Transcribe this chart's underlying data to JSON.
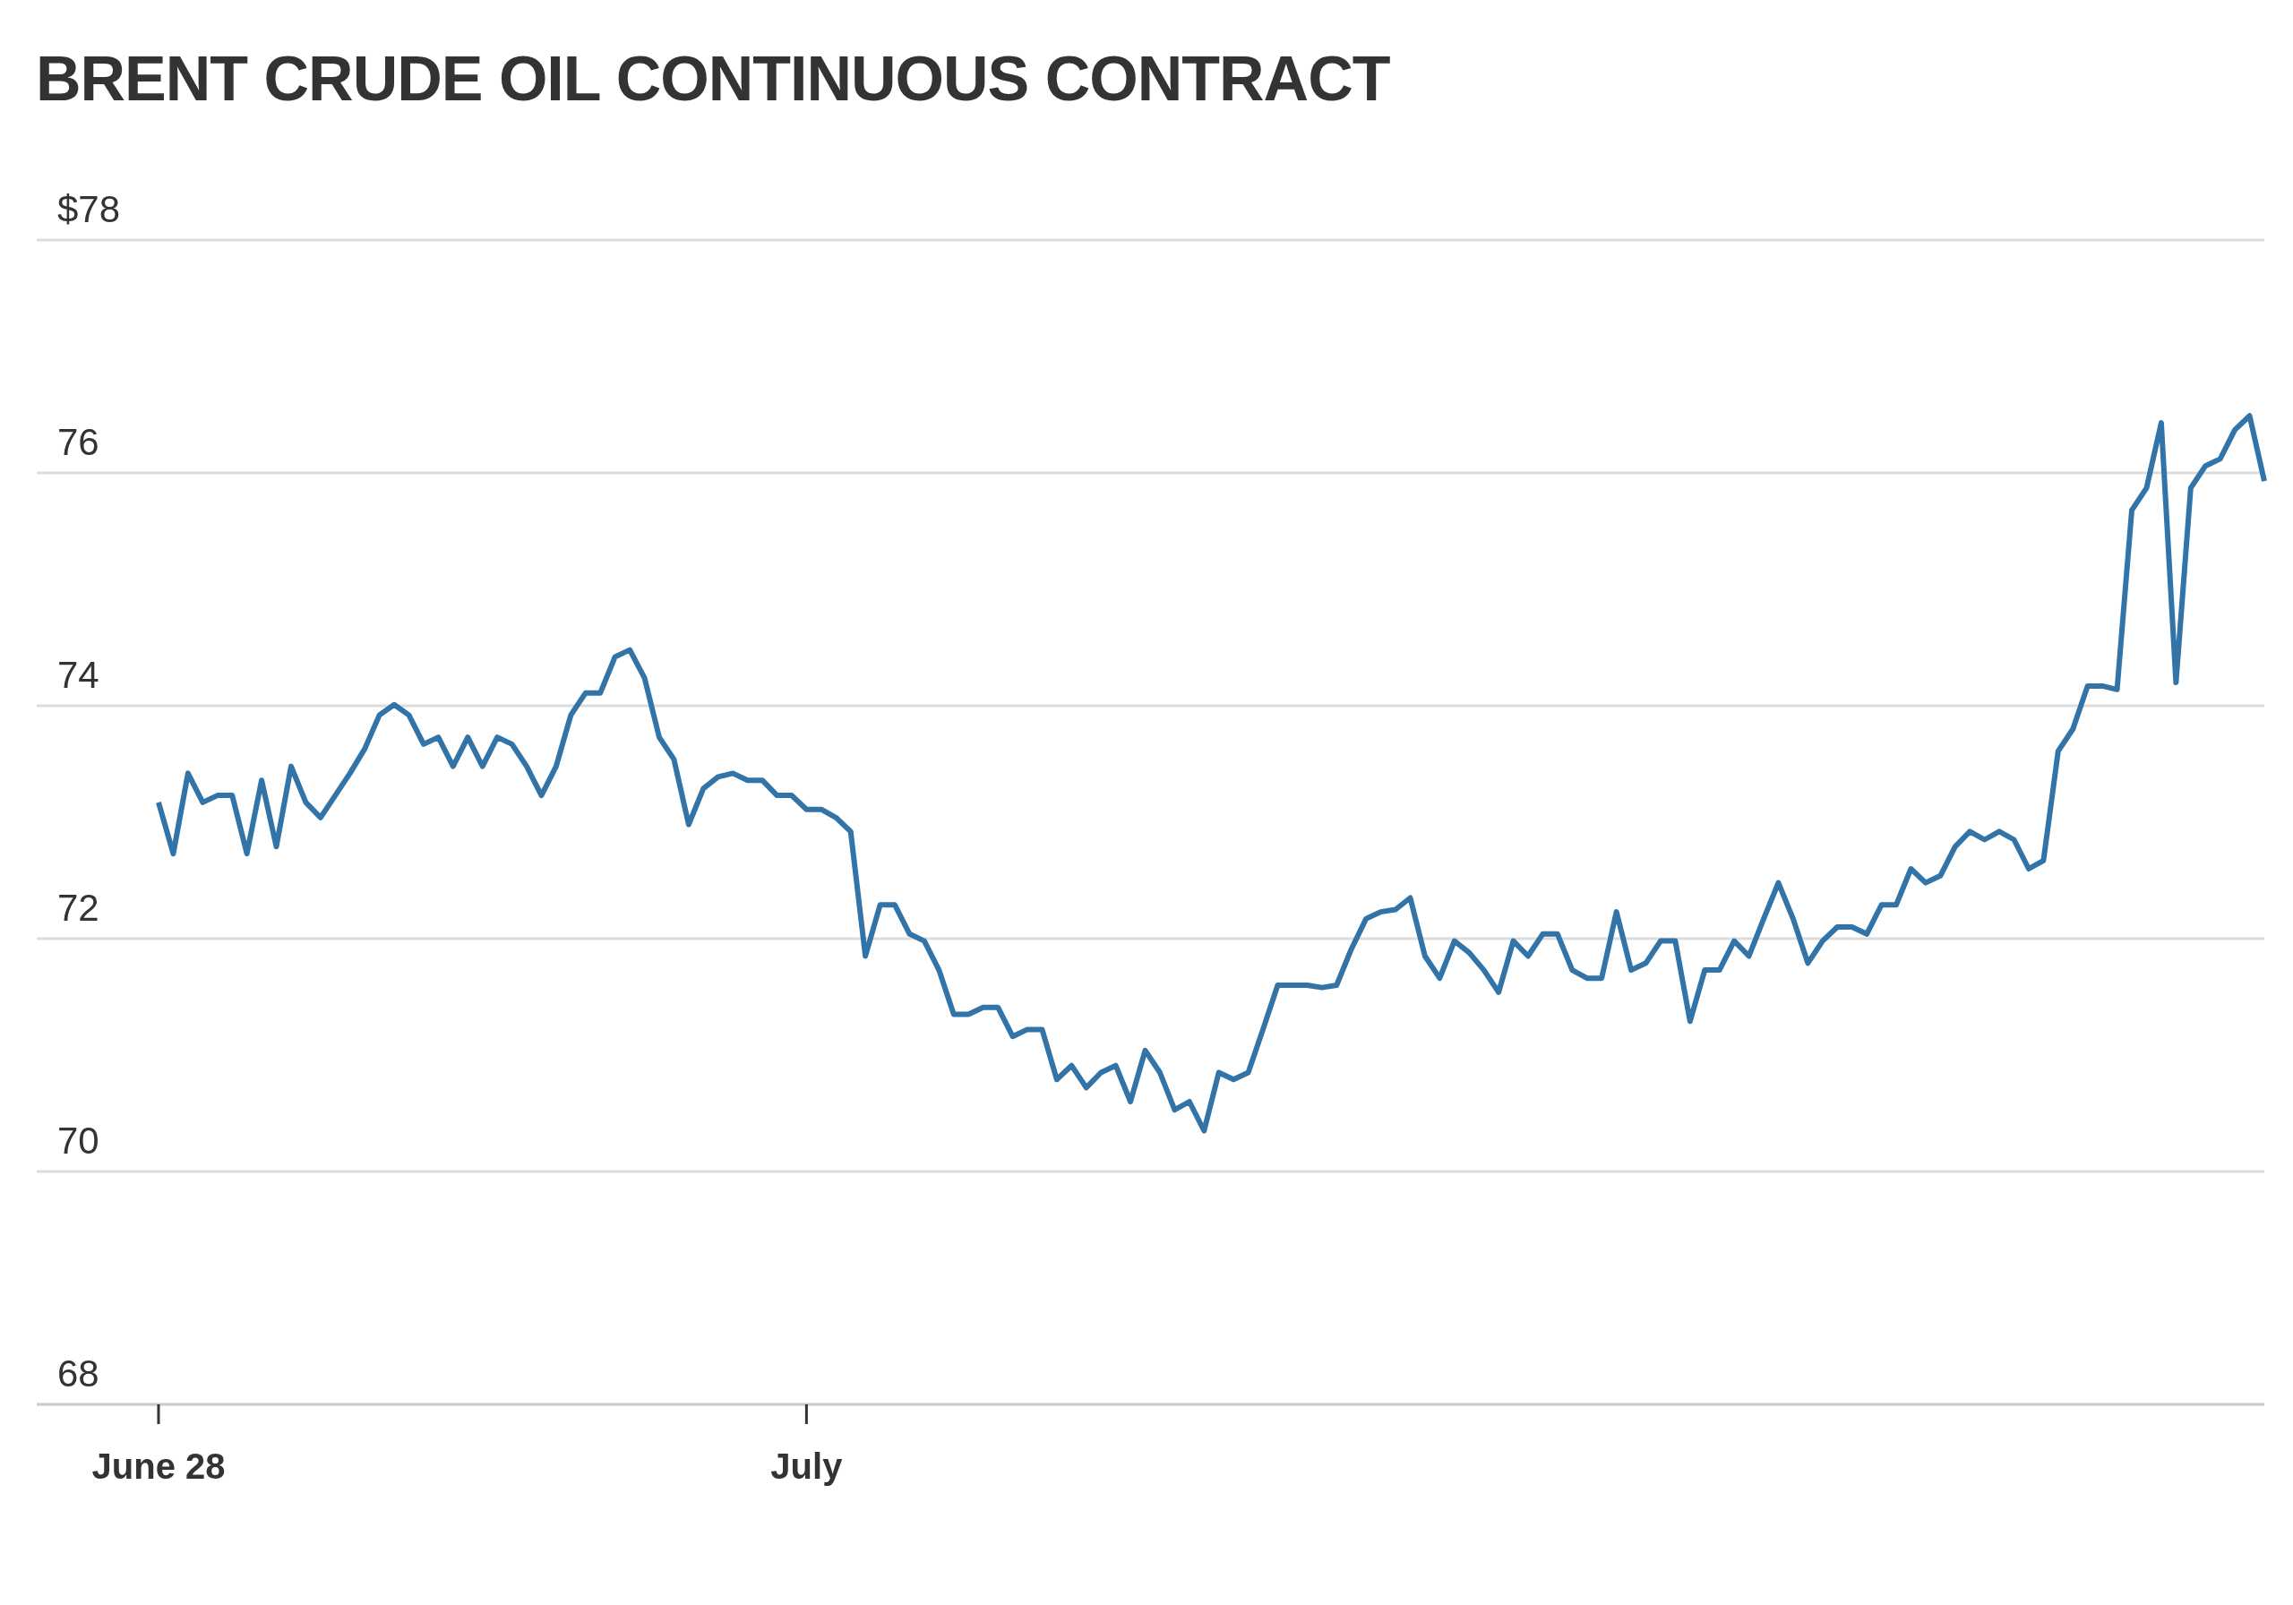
{
  "chart_data": {
    "type": "line",
    "title": "BRENT CRUDE OIL CONTINUOUS CONTRACT",
    "categories": [
      "June 28",
      null,
      null,
      null,
      null,
      null,
      null,
      null,
      null,
      null,
      null,
      null,
      null,
      null,
      null,
      null,
      null,
      null,
      null,
      null,
      null,
      null,
      null,
      null,
      null,
      null,
      null,
      null,
      null,
      null,
      null,
      null,
      null,
      null,
      null,
      null,
      null,
      null,
      null,
      null,
      null,
      null,
      null,
      null,
      "July",
      null,
      null,
      null,
      null,
      null,
      null,
      null,
      null,
      null,
      null,
      null,
      null,
      null,
      null,
      null,
      null,
      null,
      null,
      null,
      null,
      null,
      null,
      null,
      null,
      null,
      null,
      null,
      null,
      null,
      null,
      null,
      null,
      null,
      null,
      null,
      null,
      null,
      null,
      null,
      null,
      null,
      null,
      null,
      null,
      null,
      null,
      null,
      null,
      null,
      null,
      null,
      null,
      null,
      null,
      null,
      null,
      null,
      null,
      null,
      null,
      null,
      null,
      null,
      null,
      null,
      null,
      null,
      null,
      null,
      null,
      null,
      null,
      null,
      null,
      null,
      null,
      null,
      null,
      null,
      null,
      null,
      null,
      null,
      null,
      null,
      null,
      null,
      null,
      null,
      null,
      null,
      null,
      null,
      null,
      null,
      null,
      null,
      null,
      null
    ],
    "series": [
      {
        "color": "#3274a8",
        "values": [
          73.17,
          72.73,
          73.42,
          73.17,
          73.23,
          73.23,
          72.73,
          73.36,
          72.79,
          73.48,
          73.17,
          73.04,
          73.23,
          73.42,
          73.63,
          73.92,
          74.01,
          73.92,
          73.67,
          73.73,
          73.48,
          73.73,
          73.48,
          73.73,
          73.67,
          73.48,
          73.23,
          73.48,
          73.92,
          74.11,
          74.11,
          74.42,
          74.48,
          74.24,
          73.73,
          73.54,
          72.98,
          73.29,
          73.39,
          73.42,
          73.36,
          73.36,
          73.23,
          73.23,
          73.11,
          73.11,
          73.04,
          72.92,
          71.85,
          72.29,
          72.29,
          72.04,
          71.98,
          71.73,
          71.35,
          71.35,
          71.41,
          71.41,
          71.16,
          71.22,
          71.22,
          70.79,
          70.91,
          70.72,
          70.85,
          70.91,
          70.6,
          71.04,
          70.85,
          70.53,
          70.6,
          70.35,
          70.85,
          70.79,
          70.85,
          71.22,
          71.6,
          71.6,
          71.6,
          71.58,
          71.6,
          71.91,
          72.17,
          72.23,
          72.25,
          72.35,
          71.85,
          71.66,
          71.98,
          71.88,
          71.73,
          71.54,
          71.98,
          71.85,
          72.04,
          72.04,
          71.73,
          71.66,
          71.66,
          72.23,
          71.73,
          71.79,
          71.98,
          71.98,
          71.29,
          71.73,
          71.73,
          71.98,
          71.85,
          72.17,
          72.48,
          72.17,
          71.79,
          71.98,
          72.1,
          72.1,
          72.04,
          72.29,
          72.29,
          72.6,
          72.48,
          72.54,
          72.79,
          72.92,
          72.85,
          72.92,
          72.85,
          72.6,
          72.67,
          73.61,
          73.8,
          74.17,
          74.17,
          74.14,
          75.68,
          75.87,
          76.43,
          74.2,
          75.87,
          76.06,
          76.12,
          76.37,
          76.49,
          75.93
        ]
      }
    ],
    "ylim": [
      68,
      78
    ],
    "yticks": [
      {
        "value": 78,
        "label": "$78"
      },
      76,
      74,
      72,
      70,
      68
    ],
    "grid": "y"
  }
}
